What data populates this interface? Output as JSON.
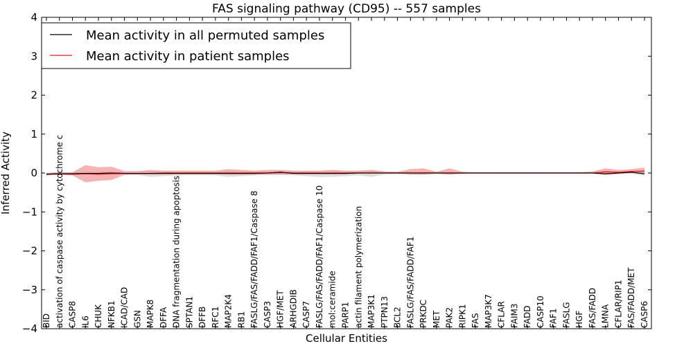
{
  "chart_data": {
    "type": "line",
    "title": "FAS signaling pathway (CD95) -- 557 samples",
    "xlabel": "Cellular Entities",
    "ylabel": "Inferred Activity",
    "ylim": [
      -4,
      4
    ],
    "yticks": [
      -4,
      -3,
      -2,
      -1,
      0,
      1,
      2,
      3,
      4
    ],
    "grid": false,
    "legend_position": "top-left",
    "colors": {
      "permuted": "#000000",
      "patient": "#e41a1c",
      "patient_band": "#f08080",
      "permuted_band": "#c8c8c8"
    },
    "categories": [
      "BID",
      "activation of caspase activity by cytochrome c",
      "CASP8",
      "IL6",
      "CHUK",
      "NFKB1",
      "ICAD/CAD",
      "GSN",
      "MAPK8",
      "DFFA",
      "DNA fragmentation during apoptosis",
      "SPTAN1",
      "DFFB",
      "RFC1",
      "MAP2K4",
      "RB1",
      "FASLG/FAS/FADD/FAF1/Caspase 8",
      "CASP3",
      "HGF/MET",
      "ARHGDIB",
      "CASP7",
      "FASLG/FAS/FADD/FAF1/Caspase 10",
      "mol:ceramide",
      "PARP1",
      "actin filament polymerization",
      "MAP3K1",
      "PTPN13",
      "BCL2",
      "FASLG/FAS/FADD/FAF1",
      "PRKDC",
      "MET",
      "PAK2",
      "RIPK1",
      "FAS",
      "MAP3K7",
      "CFLAR",
      "FAIM3",
      "FADD",
      "CASP10",
      "FAF1",
      "FASLG",
      "HGF",
      "FAS/FADD",
      "LMNA",
      "CFLAR/RIP1",
      "FAS/FADD/MET",
      "CASP6"
    ],
    "series": [
      {
        "name": "Mean activity in all permuted samples",
        "values": [
          -0.03,
          -0.02,
          -0.02,
          -0.01,
          -0.01,
          0.0,
          -0.01,
          -0.01,
          -0.01,
          -0.01,
          -0.01,
          -0.01,
          -0.01,
          -0.01,
          -0.01,
          -0.01,
          -0.01,
          0.0,
          0.02,
          -0.01,
          -0.01,
          -0.01,
          -0.01,
          -0.01,
          0.0,
          0.0,
          0.0,
          0.0,
          0.0,
          0.0,
          0.0,
          0.0,
          0.0,
          0.0,
          0.0,
          0.0,
          0.0,
          0.0,
          0.0,
          0.0,
          0.0,
          0.0,
          0.0,
          -0.02,
          0.0,
          0.02,
          -0.02
        ],
        "lower": [
          -0.06,
          -0.05,
          -0.05,
          -0.04,
          -0.04,
          -0.04,
          -0.04,
          -0.05,
          -0.1,
          -0.08,
          -0.06,
          -0.06,
          -0.06,
          -0.06,
          -0.1,
          -0.08,
          -0.06,
          -0.05,
          -0.05,
          -0.06,
          -0.08,
          -0.1,
          -0.1,
          -0.08,
          -0.06,
          -0.1,
          -0.04,
          -0.03,
          -0.05,
          -0.05,
          -0.03,
          -0.05,
          -0.03,
          -0.02,
          -0.02,
          -0.02,
          -0.02,
          -0.02,
          -0.02,
          -0.02,
          -0.02,
          -0.02,
          -0.02,
          -0.06,
          -0.03,
          -0.02,
          -0.07
        ],
        "upper": [
          0.01,
          0.02,
          0.02,
          0.03,
          0.03,
          0.04,
          0.02,
          0.03,
          0.05,
          0.04,
          0.03,
          0.03,
          0.03,
          0.03,
          0.06,
          0.04,
          0.04,
          0.04,
          0.06,
          0.04,
          0.04,
          0.04,
          0.06,
          0.04,
          0.04,
          0.06,
          0.03,
          0.03,
          0.03,
          0.03,
          0.03,
          0.03,
          0.02,
          0.02,
          0.02,
          0.02,
          0.02,
          0.02,
          0.02,
          0.02,
          0.02,
          0.02,
          0.02,
          0.03,
          0.03,
          0.05,
          0.03
        ]
      },
      {
        "name": "Mean activity in patient samples",
        "values": [
          -0.03,
          -0.02,
          -0.03,
          -0.02,
          -0.03,
          -0.02,
          -0.01,
          -0.01,
          -0.01,
          0.0,
          0.0,
          0.0,
          0.0,
          0.0,
          0.0,
          0.0,
          0.0,
          0.0,
          0.01,
          0.0,
          0.0,
          0.0,
          0.0,
          0.0,
          0.0,
          0.0,
          0.0,
          0.0,
          0.0,
          0.0,
          0.0,
          0.0,
          0.0,
          0.0,
          0.0,
          0.0,
          0.0,
          0.0,
          0.0,
          0.0,
          0.0,
          0.0,
          0.0,
          0.03,
          0.02,
          0.04,
          0.05
        ],
        "lower": [
          -0.06,
          -0.05,
          -0.06,
          -0.24,
          -0.2,
          -0.18,
          -0.05,
          -0.04,
          -0.04,
          -0.04,
          -0.03,
          -0.03,
          -0.03,
          -0.03,
          -0.04,
          -0.04,
          -0.04,
          -0.04,
          -0.04,
          -0.03,
          -0.03,
          -0.03,
          -0.03,
          -0.03,
          -0.02,
          -0.02,
          -0.01,
          -0.01,
          -0.03,
          -0.04,
          -0.01,
          -0.04,
          -0.01,
          -0.01,
          -0.01,
          -0.01,
          -0.01,
          -0.01,
          -0.01,
          -0.01,
          -0.01,
          -0.01,
          -0.01,
          -0.04,
          -0.02,
          0.0,
          -0.02
        ],
        "upper": [
          0.0,
          0.02,
          0.02,
          0.2,
          0.15,
          0.16,
          0.05,
          0.05,
          0.08,
          0.06,
          0.06,
          0.06,
          0.06,
          0.06,
          0.1,
          0.08,
          0.06,
          0.08,
          0.08,
          0.06,
          0.06,
          0.06,
          0.08,
          0.06,
          0.06,
          0.08,
          0.04,
          0.03,
          0.1,
          0.12,
          0.03,
          0.12,
          0.03,
          0.02,
          0.02,
          0.02,
          0.02,
          0.02,
          0.02,
          0.02,
          0.02,
          0.02,
          0.04,
          0.12,
          0.08,
          0.1,
          0.14
        ]
      }
    ]
  }
}
